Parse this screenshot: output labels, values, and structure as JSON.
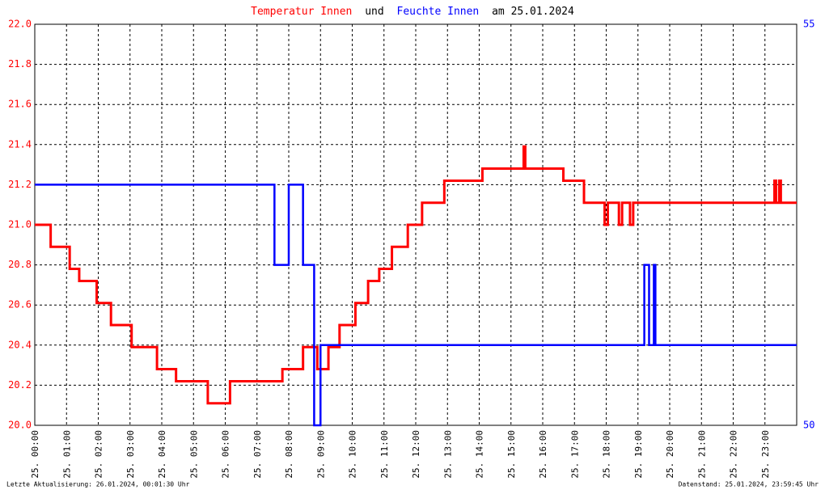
{
  "chart_data": {
    "type": "line",
    "title_parts": [
      "Temperatur Innen",
      "und",
      "Feuchte Innen",
      "am 25.01.2024"
    ],
    "footer_left": "Letzte Aktualisierung: 26.01.2024, 00:01:30 Uhr",
    "footer_right": "Datenstand: 25.01.2024, 23:59:45 Uhr",
    "grid": true,
    "step": true,
    "xlim": [
      0,
      24
    ],
    "xticks": [
      {
        "value": 0,
        "label": "25. 00:00"
      },
      {
        "value": 1,
        "label": "25. 01:00"
      },
      {
        "value": 2,
        "label": "25. 02:00"
      },
      {
        "value": 3,
        "label": "25. 03:00"
      },
      {
        "value": 4,
        "label": "25. 04:00"
      },
      {
        "value": 5,
        "label": "25. 05:00"
      },
      {
        "value": 6,
        "label": "25. 06:00"
      },
      {
        "value": 7,
        "label": "25. 07:00"
      },
      {
        "value": 8,
        "label": "25. 08:00"
      },
      {
        "value": 9,
        "label": "25. 09:00"
      },
      {
        "value": 10,
        "label": "25. 10:00"
      },
      {
        "value": 11,
        "label": "25. 11:00"
      },
      {
        "value": 12,
        "label": "25. 12:00"
      },
      {
        "value": 13,
        "label": "25. 13:00"
      },
      {
        "value": 14,
        "label": "25. 14:00"
      },
      {
        "value": 15,
        "label": "25. 15:00"
      },
      {
        "value": 16,
        "label": "25. 16:00"
      },
      {
        "value": 17,
        "label": "25. 17:00"
      },
      {
        "value": 18,
        "label": "25. 18:00"
      },
      {
        "value": 19,
        "label": "25. 19:00"
      },
      {
        "value": 20,
        "label": "25. 20:00"
      },
      {
        "value": 21,
        "label": "25. 21:00"
      },
      {
        "value": 22,
        "label": "25. 22:00"
      },
      {
        "value": 23,
        "label": "25. 23:00"
      }
    ],
    "ylim": [
      20.0,
      22.0
    ],
    "yticks": [
      {
        "value": 20,
        "label": "20.0"
      },
      20.2,
      20.4,
      20.6,
      20.8,
      {
        "value": 21,
        "label": "21.0"
      },
      21.2,
      21.4,
      21.6,
      21.8,
      {
        "value": 22,
        "label": "22.0"
      }
    ],
    "y_tick_color": "#ff0000",
    "y2lim": [
      50,
      55
    ],
    "y2ticks": [
      50,
      55
    ],
    "y2_tick_color": "#0000ff",
    "series": [
      {
        "name": "Temperatur Innen",
        "color": "#ff0000",
        "width": 3,
        "x": [
          0,
          0.5,
          1.1,
          1.4,
          1.95,
          2.4,
          3.05,
          3.85,
          4.45,
          5.45,
          6.15,
          7.8,
          8.45,
          8.9,
          9.25,
          9.6,
          10.1,
          10.5,
          10.85,
          11.25,
          11.75,
          12.2,
          12.9,
          14.1,
          15.4,
          15.45,
          16.65,
          17.3,
          17.95,
          18.05,
          18.4,
          18.5,
          18.75,
          18.85,
          23.3,
          23.35,
          23.45,
          23.5,
          24
        ],
        "values": [
          21.0,
          20.89,
          20.78,
          20.72,
          20.61,
          20.5,
          20.39,
          20.28,
          20.22,
          20.11,
          20.22,
          20.28,
          20.39,
          20.28,
          20.39,
          20.5,
          20.61,
          20.72,
          20.78,
          20.89,
          21.0,
          21.11,
          21.22,
          21.28,
          21.39,
          21.28,
          21.22,
          21.11,
          21.0,
          21.11,
          21.0,
          21.11,
          21.0,
          21.11,
          21.22,
          21.11,
          21.22,
          21.11,
          21.11
        ]
      },
      {
        "name": "Feuchte Innen",
        "color": "#0000ff",
        "width": 2.5,
        "axis": "y2",
        "x": [
          0,
          7.55,
          8.0,
          8.45,
          8.8,
          9.0,
          19.2,
          19.35,
          19.5,
          19.55,
          24
        ],
        "values": [
          53,
          52,
          53,
          52,
          50,
          51,
          52,
          51,
          52,
          51,
          51
        ]
      }
    ]
  }
}
